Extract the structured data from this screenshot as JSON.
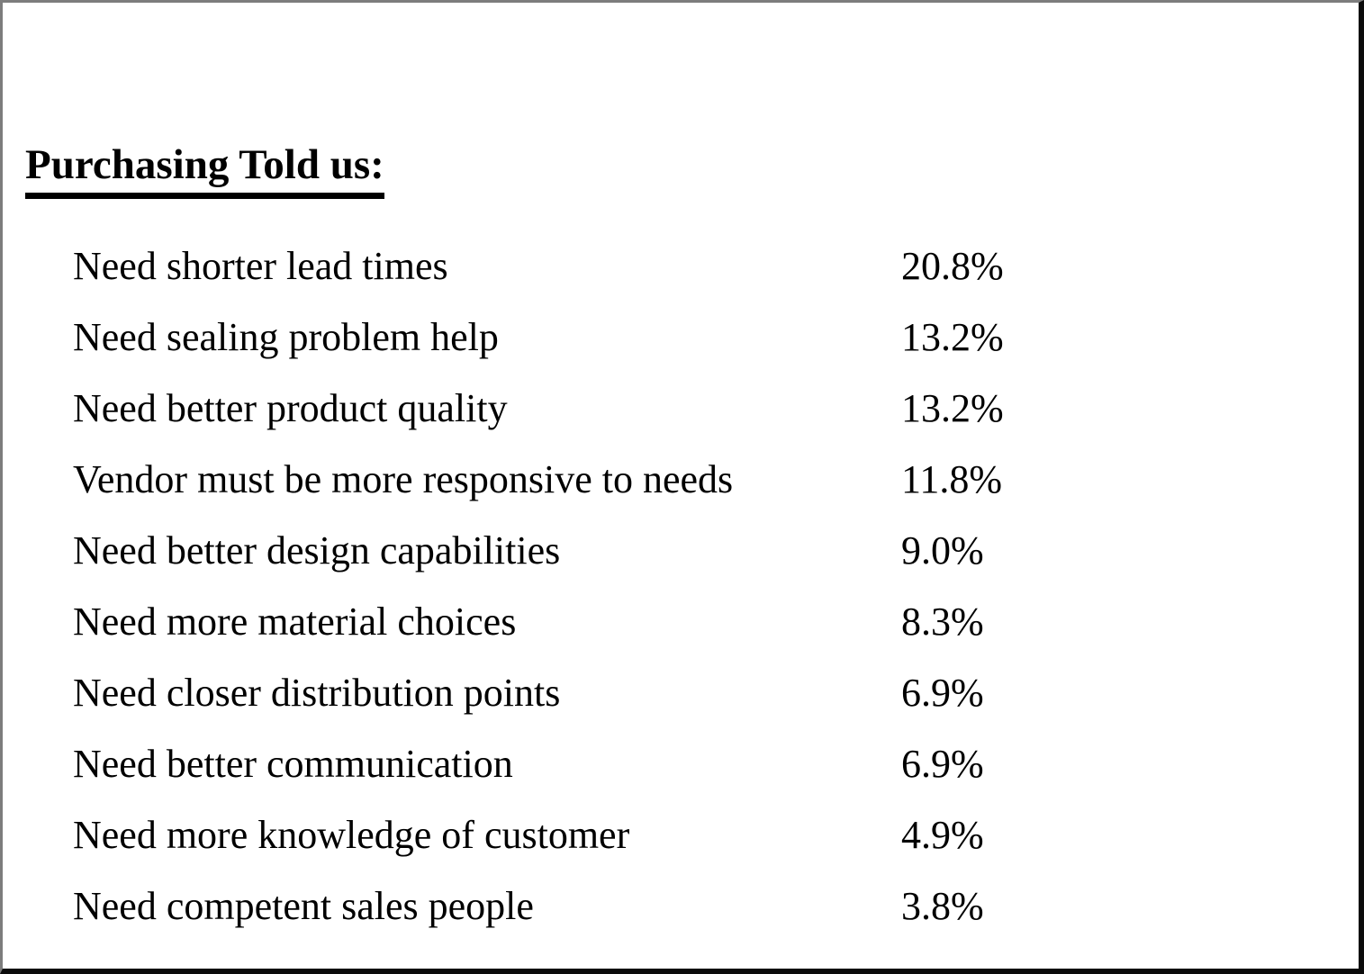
{
  "page": {
    "heading": "Purchasing Told us:"
  },
  "list": {
    "items": [
      {
        "label": "Need shorter lead times",
        "value": "20.8%"
      },
      {
        "label": "Need sealing problem help",
        "value": "13.2%"
      },
      {
        "label": "Need better product quality",
        "value": "13.2%"
      },
      {
        "label": "Vendor must be more responsive to needs",
        "value": "11.8%"
      },
      {
        "label": "Need better design capabilities",
        "value": "9.0%"
      },
      {
        "label": "Need more material choices",
        "value": "8.3%"
      },
      {
        "label": "Need closer distribution points",
        "value": "6.9%"
      },
      {
        "label": "Need better communication",
        "value": "6.9%"
      },
      {
        "label": "Need more knowledge of customer",
        "value": "4.9%"
      },
      {
        "label": "Need competent sales people",
        "value": "3.8%"
      }
    ]
  }
}
